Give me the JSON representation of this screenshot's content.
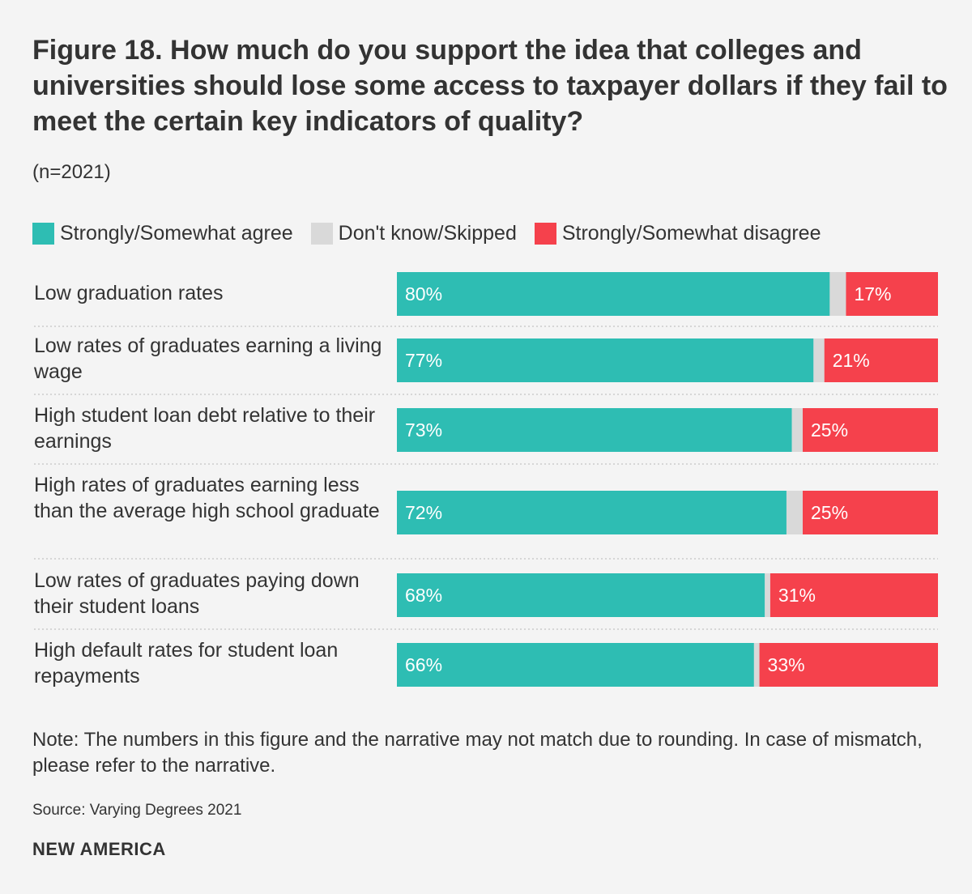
{
  "chart_data": {
    "type": "bar",
    "orientation": "horizontal",
    "stacked": true,
    "title": "Figure 18. How much do you support the idea that colleges and universities should lose some access to taxpayer dollars if they fail to meet the certain key indicators of quality?",
    "subtitle": "(n=2021)",
    "categories": [
      "Low graduation rates",
      "Low rates of graduates earning a living wage",
      "High student loan debt relative to their earnings",
      "High rates of graduates earning less than the average high school graduate",
      "Low rates of graduates paying down their student loans",
      "High default rates for student loan repayments"
    ],
    "series": [
      {
        "name": "Strongly/Somewhat agree",
        "color": "#2ebdb3",
        "values": [
          80,
          77,
          73,
          72,
          68,
          66
        ],
        "labels": [
          "80%",
          "77%",
          "73%",
          "72%",
          "68%",
          "66%"
        ]
      },
      {
        "name": "Don't know/Skipped",
        "color": "#d9d9d9",
        "values": [
          3,
          2,
          2,
          3,
          1,
          1
        ],
        "labels": [
          "",
          "",
          "",
          "",
          "",
          ""
        ]
      },
      {
        "name": "Strongly/Somewhat disagree",
        "color": "#f5414c",
        "values": [
          17,
          21,
          25,
          25,
          31,
          33
        ],
        "labels": [
          "17%",
          "21%",
          "25%",
          "25%",
          "31%",
          "33%"
        ]
      }
    ],
    "xlim": [
      0,
      100
    ],
    "legend_position": "top-left",
    "grid": false
  },
  "note": "Note: The numbers in this figure and the narrative may not match due to rounding. In case of mismatch, please refer to the narrative.",
  "source": "Source: Varying Degrees 2021",
  "brand": "NEW AMERICA"
}
